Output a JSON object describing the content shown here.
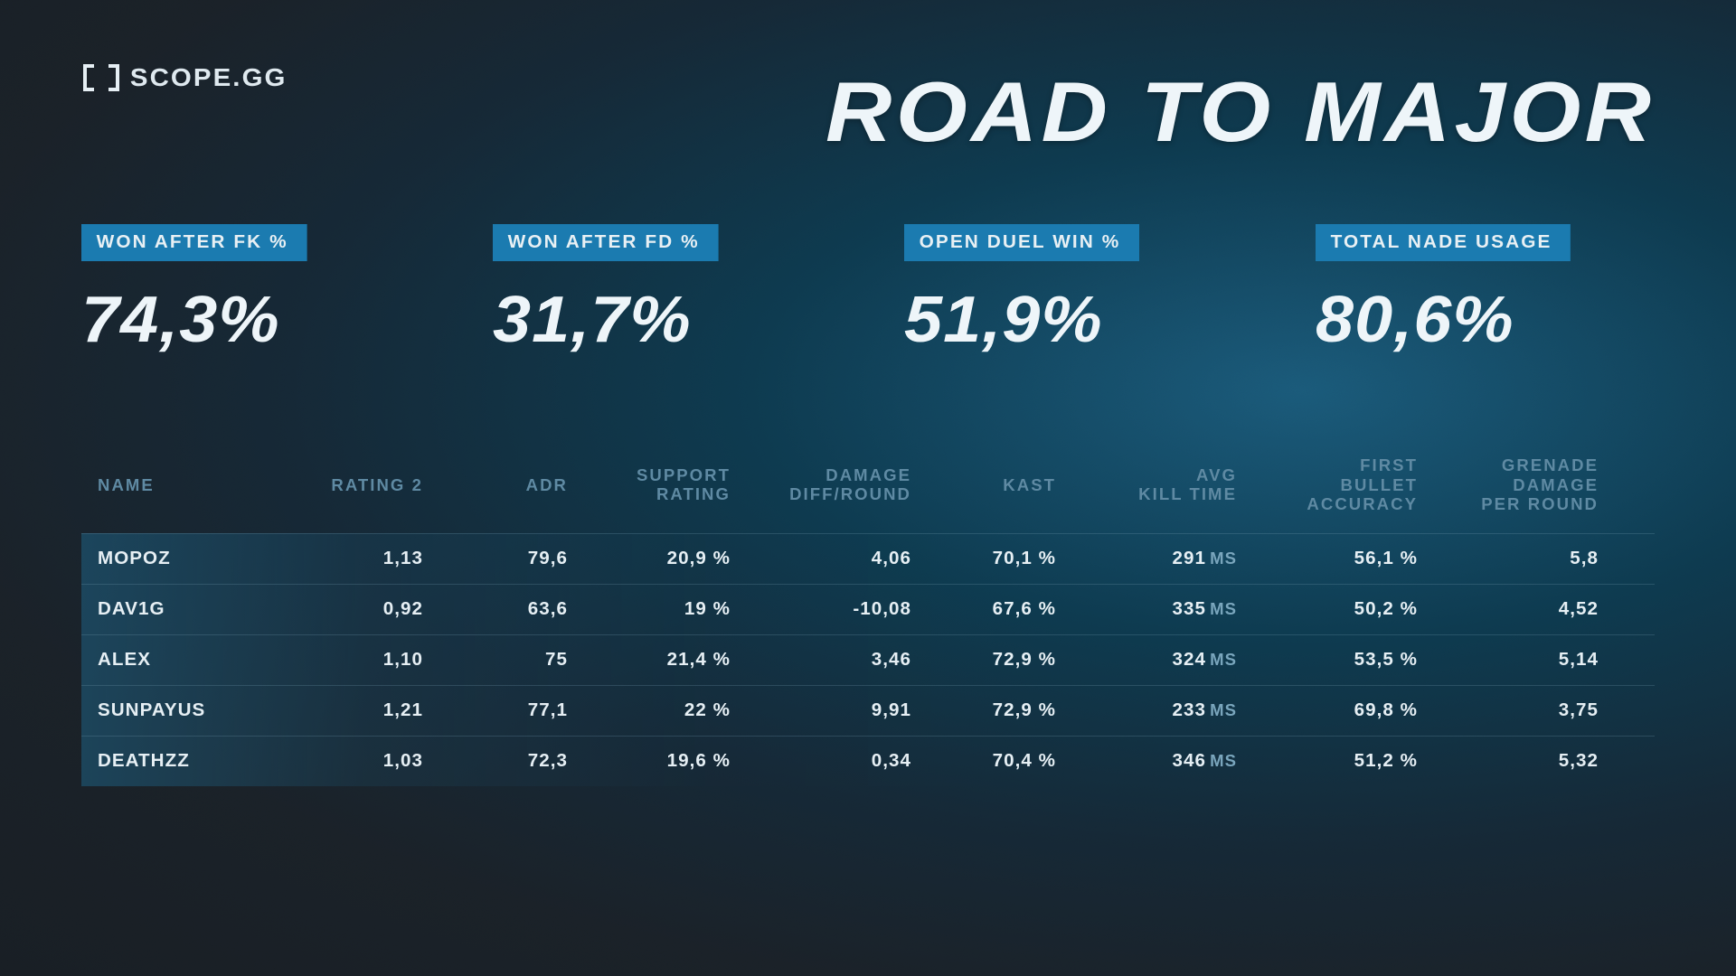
{
  "brand": "SCOPE.GG",
  "title": "ROAD TO MAJOR",
  "colors": {
    "accent": "#1b7bb0",
    "text": "#e8f0f4",
    "muted": "#5f8aa3",
    "row_glow": "#1e6e96"
  },
  "stats": [
    {
      "label": "WON AFTER FK %",
      "value": "74,3%"
    },
    {
      "label": "WON AFTER FD %",
      "value": "31,7%"
    },
    {
      "label": "OPEN DUEL WIN %",
      "value": "51,9%"
    },
    {
      "label": "TOTAL NADE USAGE",
      "value": "80,6%"
    }
  ],
  "table": {
    "columns": [
      "NAME",
      "RATING 2",
      "ADR",
      "SUPPORT\nRATING",
      "DAMAGE\nDIFF/ROUND",
      "KAST",
      "AVG\nKILL TIME",
      "FIRST\nBULLET\nACCURACY",
      "GRENADE\nDAMAGE\nPER ROUND"
    ],
    "rows": [
      {
        "name": "MOPOZ",
        "rating2": "1,13",
        "adr": "79,6",
        "support": "20,9 %",
        "dmgdiff": "4,06",
        "kast": "70,1 %",
        "killtime": "291",
        "killtime_unit": "MS",
        "fba": "56,1 %",
        "gdr": "5,8"
      },
      {
        "name": "DAV1G",
        "rating2": "0,92",
        "adr": "63,6",
        "support": "19 %",
        "dmgdiff": "-10,08",
        "kast": "67,6 %",
        "killtime": "335",
        "killtime_unit": "MS",
        "fba": "50,2 %",
        "gdr": "4,52"
      },
      {
        "name": "ALEX",
        "rating2": "1,10",
        "adr": "75",
        "support": "21,4 %",
        "dmgdiff": "3,46",
        "kast": "72,9 %",
        "killtime": "324",
        "killtime_unit": "MS",
        "fba": "53,5 %",
        "gdr": "5,14"
      },
      {
        "name": "SUNPAYUS",
        "rating2": "1,21",
        "adr": "77,1",
        "support": "22 %",
        "dmgdiff": "9,91",
        "kast": "72,9 %",
        "killtime": "233",
        "killtime_unit": "MS",
        "fba": "69,8 %",
        "gdr": "3,75"
      },
      {
        "name": "DEATHZZ",
        "rating2": "1,03",
        "adr": "72,3",
        "support": "19,6 %",
        "dmgdiff": "0,34",
        "kast": "70,4 %",
        "killtime": "346",
        "killtime_unit": "MS",
        "fba": "51,2 %",
        "gdr": "5,32"
      }
    ]
  }
}
